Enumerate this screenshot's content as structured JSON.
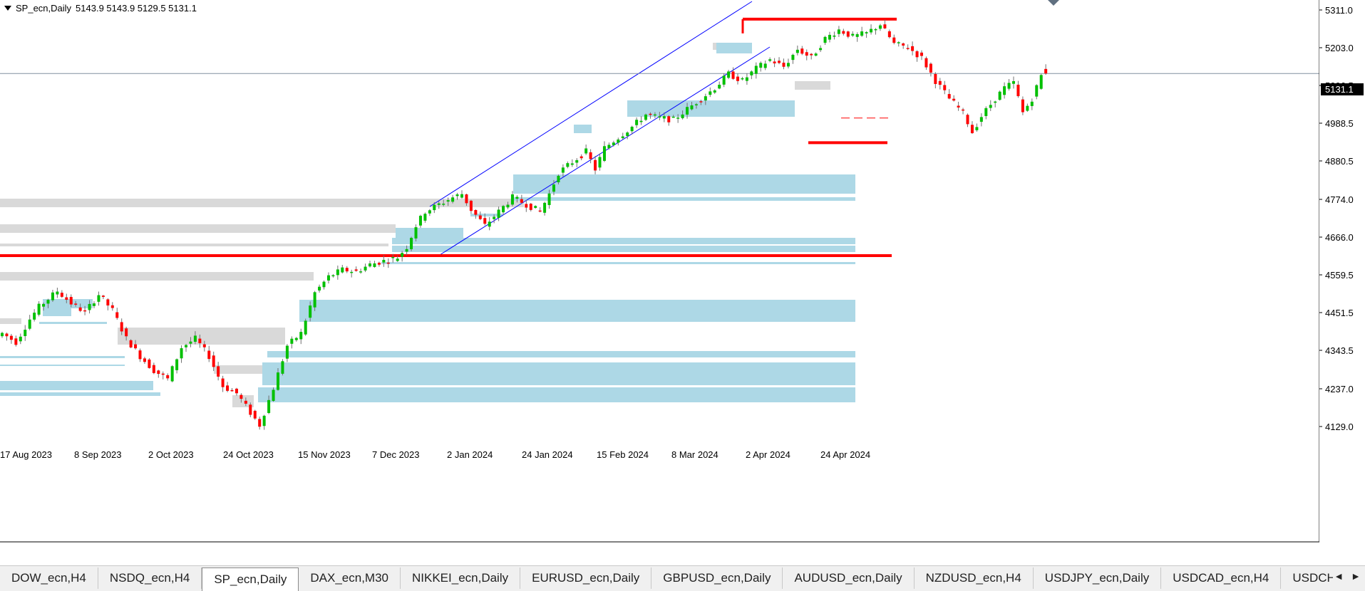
{
  "header": {
    "symbol": "SP_ecn,Daily",
    "ohlc": "5143.9 5143.9 5129.5 5131.1"
  },
  "current_price_label": "5131.1",
  "colors": {
    "bull": "#00c000",
    "bear": "#ff0000",
    "zone_blue": "#add8e6",
    "zone_gray": "#d9d9d9",
    "channel": "#0000ff",
    "level_red": "#ff0000"
  },
  "tabs": [
    "DOW_ecn,H4",
    "NSDQ_ecn,H4",
    "SP_ecn,Daily",
    "DAX_ecn,M30",
    "NIKKEI_ecn,Daily",
    "EURUSD_ecn,Daily",
    "GBPUSD_ecn,Daily",
    "AUDUSD_ecn,Daily",
    "NZDUSD_ecn,H4",
    "USDJPY_ecn,Daily",
    "USDCAD_ecn,H4",
    "USDCHF_ecr"
  ],
  "active_tab": 2,
  "tab_nav": {
    "left": "◄",
    "right": "►"
  },
  "chart_data": {
    "type": "candlestick",
    "y_ticks": [
      "5311.0",
      "5203.0",
      "5096.5",
      "4988.5",
      "4880.5",
      "4774.0",
      "4666.0",
      "4559.5",
      "4451.5",
      "4343.5",
      "4237.0",
      "4129.0"
    ],
    "x_ticks": [
      "17 Aug 2023",
      "8 Sep 2023",
      "2 Oct 2023",
      "24 Oct 2023",
      "15 Nov 2023",
      "7 Dec 2023",
      "2 Jan 2024",
      "24 Jan 2024",
      "15 Feb 2024",
      "8 Mar 2024",
      "2 Apr 2024",
      "24 Apr 2024"
    ],
    "ylim": [
      4090,
      5340
    ],
    "current_price": 5131.1,
    "key_levels": [
      4615,
      5285,
      4935,
      5005
    ],
    "anchor_closes": [
      {
        "bar": 0,
        "c": 4395
      },
      {
        "bar": 3,
        "c": 4370
      },
      {
        "bar": 6,
        "c": 4435
      },
      {
        "bar": 8,
        "c": 4470
      },
      {
        "bar": 12,
        "c": 4515
      },
      {
        "bar": 15,
        "c": 4480
      },
      {
        "bar": 18,
        "c": 4455
      },
      {
        "bar": 21,
        "c": 4505
      },
      {
        "bar": 24,
        "c": 4460
      },
      {
        "bar": 27,
        "c": 4380
      },
      {
        "bar": 30,
        "c": 4330
      },
      {
        "bar": 33,
        "c": 4290
      },
      {
        "bar": 36,
        "c": 4265
      },
      {
        "bar": 39,
        "c": 4355
      },
      {
        "bar": 42,
        "c": 4380
      },
      {
        "bar": 45,
        "c": 4330
      },
      {
        "bar": 48,
        "c": 4245
      },
      {
        "bar": 51,
        "c": 4225
      },
      {
        "bar": 54,
        "c": 4170
      },
      {
        "bar": 56,
        "c": 4135
      },
      {
        "bar": 59,
        "c": 4240
      },
      {
        "bar": 62,
        "c": 4360
      },
      {
        "bar": 65,
        "c": 4395
      },
      {
        "bar": 68,
        "c": 4510
      },
      {
        "bar": 71,
        "c": 4555
      },
      {
        "bar": 74,
        "c": 4575
      },
      {
        "bar": 77,
        "c": 4570
      },
      {
        "bar": 80,
        "c": 4590
      },
      {
        "bar": 83,
        "c": 4600
      },
      {
        "bar": 86,
        "c": 4610
      },
      {
        "bar": 88,
        "c": 4640
      },
      {
        "bar": 90,
        "c": 4700
      },
      {
        "bar": 92,
        "c": 4740
      },
      {
        "bar": 95,
        "c": 4760
      },
      {
        "bar": 98,
        "c": 4780
      },
      {
        "bar": 100,
        "c": 4790
      },
      {
        "bar": 102,
        "c": 4745
      },
      {
        "bar": 105,
        "c": 4700
      },
      {
        "bar": 108,
        "c": 4740
      },
      {
        "bar": 111,
        "c": 4780
      },
      {
        "bar": 114,
        "c": 4760
      },
      {
        "bar": 117,
        "c": 4740
      },
      {
        "bar": 119,
        "c": 4790
      },
      {
        "bar": 121,
        "c": 4850
      },
      {
        "bar": 124,
        "c": 4880
      },
      {
        "bar": 127,
        "c": 4910
      },
      {
        "bar": 129,
        "c": 4860
      },
      {
        "bar": 131,
        "c": 4920
      },
      {
        "bar": 134,
        "c": 4950
      },
      {
        "bar": 137,
        "c": 4980
      },
      {
        "bar": 140,
        "c": 5015
      },
      {
        "bar": 143,
        "c": 5005
      },
      {
        "bar": 146,
        "c": 5000
      },
      {
        "bar": 149,
        "c": 5030
      },
      {
        "bar": 152,
        "c": 5060
      },
      {
        "bar": 155,
        "c": 5090
      },
      {
        "bar": 158,
        "c": 5130
      },
      {
        "bar": 161,
        "c": 5110
      },
      {
        "bar": 164,
        "c": 5145
      },
      {
        "bar": 167,
        "c": 5170
      },
      {
        "bar": 170,
        "c": 5150
      },
      {
        "bar": 173,
        "c": 5200
      },
      {
        "bar": 176,
        "c": 5175
      },
      {
        "bar": 179,
        "c": 5230
      },
      {
        "bar": 182,
        "c": 5255
      },
      {
        "bar": 185,
        "c": 5235
      },
      {
        "bar": 188,
        "c": 5245
      },
      {
        "bar": 191,
        "c": 5270
      },
      {
        "bar": 194,
        "c": 5215
      },
      {
        "bar": 197,
        "c": 5205
      },
      {
        "bar": 200,
        "c": 5175
      },
      {
        "bar": 203,
        "c": 5110
      },
      {
        "bar": 206,
        "c": 5060
      },
      {
        "bar": 209,
        "c": 5020
      },
      {
        "bar": 211,
        "c": 4965
      },
      {
        "bar": 213,
        "c": 5010
      },
      {
        "bar": 216,
        "c": 5060
      },
      {
        "bar": 218,
        "c": 5090
      },
      {
        "bar": 220,
        "c": 5105
      },
      {
        "bar": 222,
        "c": 5020
      },
      {
        "bar": 224,
        "c": 5060
      },
      {
        "bar": 226,
        "c": 5125
      },
      {
        "bar": 227,
        "c": 5131.1
      }
    ]
  }
}
